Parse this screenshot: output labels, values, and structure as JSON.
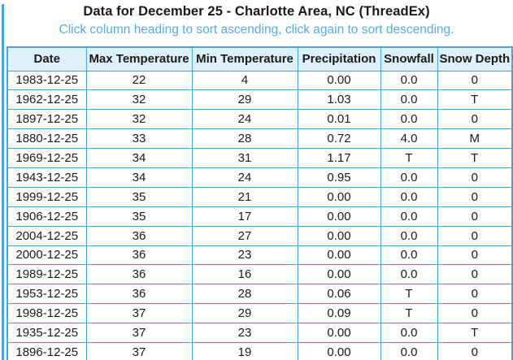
{
  "page": {
    "title": "Data for December 25 - Charlotte Area, NC (ThreadEx)",
    "subtitle": "Click column heading to sort ascending, click again to sort descending."
  },
  "colors": {
    "table_border": "#46a6da",
    "header_background": "#def0fa",
    "subtitle_text": "#58acde",
    "title_text": "#1a1a1a",
    "left_stripe": "#46a6da"
  },
  "table": {
    "columns": [
      "Date",
      "Max Temperature",
      "Min Temperature",
      "Precipitation",
      "Snowfall",
      "Snow Depth"
    ],
    "rows": [
      [
        "1983-12-25",
        "22",
        "4",
        "0.00",
        "0.0",
        "0"
      ],
      [
        "1962-12-25",
        "32",
        "29",
        "1.03",
        "0.0",
        "T"
      ],
      [
        "1897-12-25",
        "32",
        "24",
        "0.01",
        "0.0",
        "0"
      ],
      [
        "1880-12-25",
        "33",
        "28",
        "0.72",
        "4.0",
        "M"
      ],
      [
        "1969-12-25",
        "34",
        "31",
        "1.17",
        "T",
        "T"
      ],
      [
        "1943-12-25",
        "34",
        "24",
        "0.95",
        "0.0",
        "0"
      ],
      [
        "1999-12-25",
        "35",
        "21",
        "0.00",
        "0.0",
        "0"
      ],
      [
        "1906-12-25",
        "35",
        "17",
        "0.00",
        "0.0",
        "0"
      ],
      [
        "2004-12-25",
        "36",
        "27",
        "0.00",
        "0.0",
        "0"
      ],
      [
        "2000-12-25",
        "36",
        "23",
        "0.00",
        "0.0",
        "0"
      ],
      [
        "1989-12-25",
        "36",
        "16",
        "0.00",
        "0.0",
        "0"
      ],
      [
        "1953-12-25",
        "36",
        "28",
        "0.06",
        "T",
        "0"
      ],
      [
        "1998-12-25",
        "37",
        "29",
        "0.09",
        "T",
        "0"
      ],
      [
        "1935-12-25",
        "37",
        "23",
        "0.00",
        "0.0",
        "T"
      ],
      [
        "1896-12-25",
        "37",
        "19",
        "0.00",
        "0.0",
        "0"
      ]
    ]
  }
}
